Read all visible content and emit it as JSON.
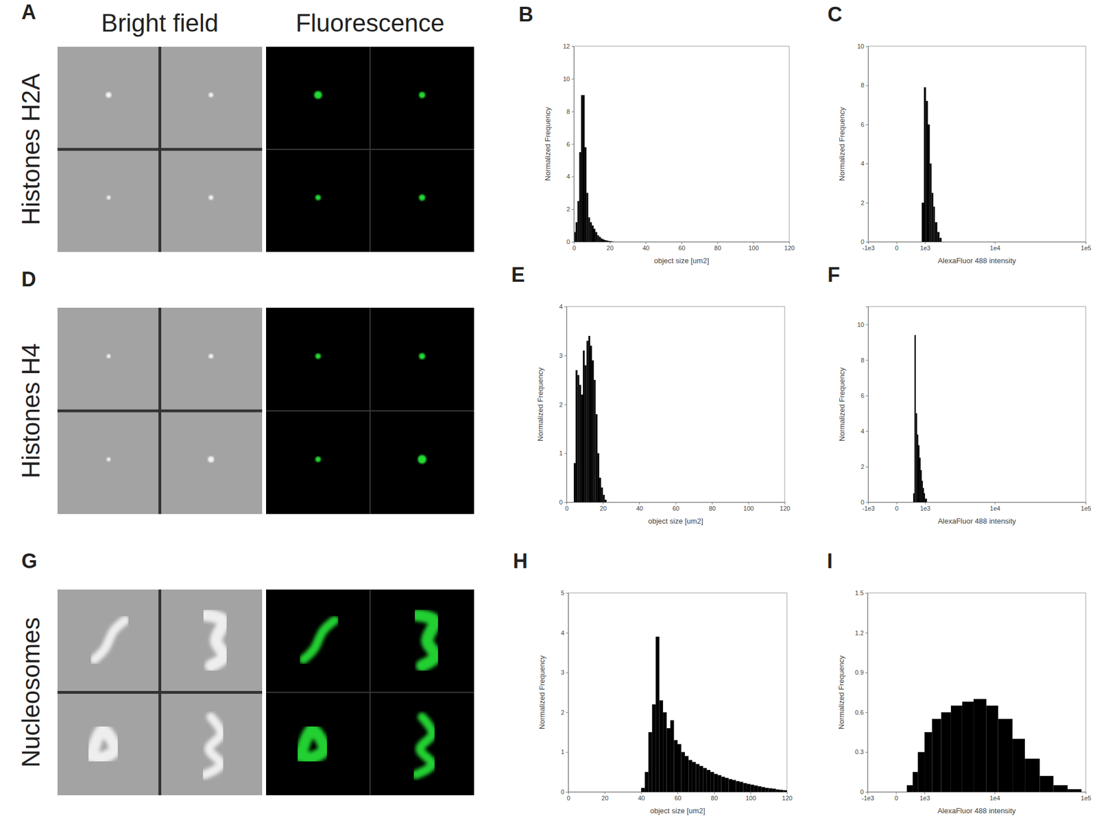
{
  "figure": {
    "column_headers": [
      "Bright field",
      "Fluorescence"
    ],
    "image_panels": [
      {
        "label": "A",
        "row_label": "Histones H2A"
      },
      {
        "label": "D",
        "row_label": "Histones H4"
      },
      {
        "label": "G",
        "row_label": "Nucleosomes"
      }
    ]
  },
  "chart_data": [
    {
      "type": "histogram",
      "title": "B",
      "x_label": "object size [um2]",
      "y_label": "Normalized Frequency",
      "color": "#000000",
      "bins": [
        0,
        1,
        2,
        3,
        4,
        5,
        6,
        7,
        8,
        9,
        10,
        11,
        12,
        13,
        14,
        15,
        16,
        17,
        18,
        19,
        20,
        21,
        22
      ],
      "values": [
        0.6,
        1.2,
        2.5,
        5.5,
        9.0,
        9.0,
        5.8,
        3.0,
        1.5,
        1.2,
        1.0,
        0.8,
        0.6,
        0.4,
        0.3,
        0.2,
        0.15,
        0.1,
        0.08,
        0.05,
        0.04,
        0.02
      ],
      "xlim": [
        0,
        120
      ],
      "xticks": [
        0,
        20,
        40,
        60,
        80,
        100,
        120
      ],
      "ylim": [
        0,
        12
      ],
      "yticks": [
        0,
        2,
        4,
        6,
        8,
        10,
        12
      ]
    },
    {
      "type": "histogram",
      "title": "C",
      "x_label": "AlexaFluor 488 intensity",
      "y_label": "Normalized Frequency",
      "color": "#000000",
      "log": "x",
      "bins": [
        850,
        950,
        1050,
        1150,
        1250,
        1350,
        1450,
        1550,
        1700,
        1850,
        2000
      ],
      "values": [
        2.0,
        7.9,
        7.2,
        6.0,
        4.0,
        2.5,
        1.8,
        1.0,
        0.5,
        0.2
      ],
      "xlim": [
        -1000,
        100000
      ],
      "xticks": [
        {
          "value": -1000,
          "label": "-1e3"
        },
        0,
        {
          "value": 1000,
          "label": "1e3"
        },
        {
          "value": 10000,
          "label": "1e4"
        },
        {
          "value": 100000,
          "label": "1e5"
        }
      ],
      "ylim": [
        0,
        10
      ],
      "yticks": [
        0,
        2,
        4,
        6,
        8,
        10
      ]
    },
    {
      "type": "histogram",
      "title": "E",
      "x_label": "object size [um2]",
      "y_label": "Normalized Frequency",
      "color": "#000000",
      "bins": [
        4,
        5,
        6,
        7,
        8,
        9,
        10,
        11,
        12,
        13,
        14,
        15,
        16,
        17,
        18,
        19,
        20,
        21,
        22
      ],
      "values": [
        0.8,
        2.7,
        2.6,
        2.4,
        2.2,
        3.1,
        2.8,
        3.3,
        3.4,
        3.2,
        2.9,
        2.5,
        1.8,
        1.0,
        0.5,
        0.3,
        0.15,
        0.05
      ],
      "xlim": [
        0,
        120
      ],
      "xticks": [
        0,
        20,
        40,
        60,
        80,
        100,
        120
      ],
      "ylim": [
        0,
        4
      ],
      "yticks": [
        0,
        1,
        2,
        3,
        4
      ]
    },
    {
      "type": "histogram",
      "title": "F",
      "x_label": "AlexaFluor 488 intensity",
      "y_label": "Normalized Frequency",
      "color": "#000000",
      "log": "x",
      "bins": [
        500,
        550,
        600,
        650,
        700,
        750,
        800,
        850,
        900,
        950,
        1000,
        1100
      ],
      "values": [
        0.5,
        9.4,
        5.0,
        3.8,
        3.2,
        2.5,
        1.8,
        1.2,
        0.8,
        0.5,
        0.2
      ],
      "xlim": [
        -1000,
        100000
      ],
      "xticks": [
        {
          "value": -1000,
          "label": "-1e3"
        },
        0,
        {
          "value": 1000,
          "label": "1e3"
        },
        {
          "value": 10000,
          "label": "1e4"
        },
        {
          "value": 100000,
          "label": "1e5"
        }
      ],
      "ylim": [
        0,
        11
      ],
      "yticks": [
        0,
        2,
        4,
        6,
        8,
        10
      ]
    },
    {
      "type": "histogram",
      "title": "H",
      "x_label": "object size [um2]",
      "y_label": "Normalized Frequency",
      "color": "#000000",
      "bins": [
        40,
        42,
        44,
        46,
        48,
        50,
        52,
        54,
        56,
        58,
        60,
        62,
        64,
        66,
        68,
        70,
        72,
        74,
        76,
        78,
        80,
        82,
        84,
        86,
        88,
        90,
        92,
        94,
        96,
        98,
        100,
        102,
        104,
        106,
        108,
        110,
        112,
        114,
        116,
        118,
        120
      ],
      "values": [
        0.1,
        0.5,
        1.5,
        2.2,
        3.9,
        2.3,
        2.0,
        1.6,
        1.8,
        1.3,
        1.2,
        1.0,
        0.9,
        0.8,
        0.75,
        0.7,
        0.65,
        0.6,
        0.55,
        0.5,
        0.45,
        0.42,
        0.38,
        0.35,
        0.32,
        0.3,
        0.27,
        0.25,
        0.22,
        0.2,
        0.18,
        0.16,
        0.14,
        0.12,
        0.1,
        0.09,
        0.08,
        0.06,
        0.05,
        0.04
      ],
      "xlim": [
        0,
        120
      ],
      "xticks": [
        0,
        20,
        40,
        60,
        80,
        100,
        120
      ],
      "ylim": [
        0,
        5
      ],
      "yticks": [
        0,
        1,
        2,
        3,
        4,
        5
      ]
    },
    {
      "type": "histogram",
      "title": "I",
      "x_label": "AlexaFluor 488 intensity",
      "y_label": "Normalized Frequency",
      "color": "#000000",
      "log": "x",
      "bins": [
        300,
        500,
        700,
        1000,
        1400,
        2000,
        2800,
        4000,
        5600,
        8000,
        11000,
        16000,
        22000,
        32000,
        45000,
        64000,
        90000
      ],
      "values": [
        0.05,
        0.15,
        0.3,
        0.45,
        0.55,
        0.6,
        0.65,
        0.68,
        0.7,
        0.65,
        0.55,
        0.4,
        0.25,
        0.12,
        0.05,
        0.02
      ],
      "xlim": [
        -1000,
        100000
      ],
      "xticks": [
        {
          "value": -1000,
          "label": "-1e3"
        },
        0,
        {
          "value": 1000,
          "label": "1e3"
        },
        {
          "value": 10000,
          "label": "1e4"
        },
        {
          "value": 100000,
          "label": "1e5"
        }
      ],
      "ylim": [
        0,
        1.5
      ],
      "yticks": [
        0,
        0.3,
        0.6,
        0.9,
        1.2,
        1.5
      ]
    }
  ]
}
